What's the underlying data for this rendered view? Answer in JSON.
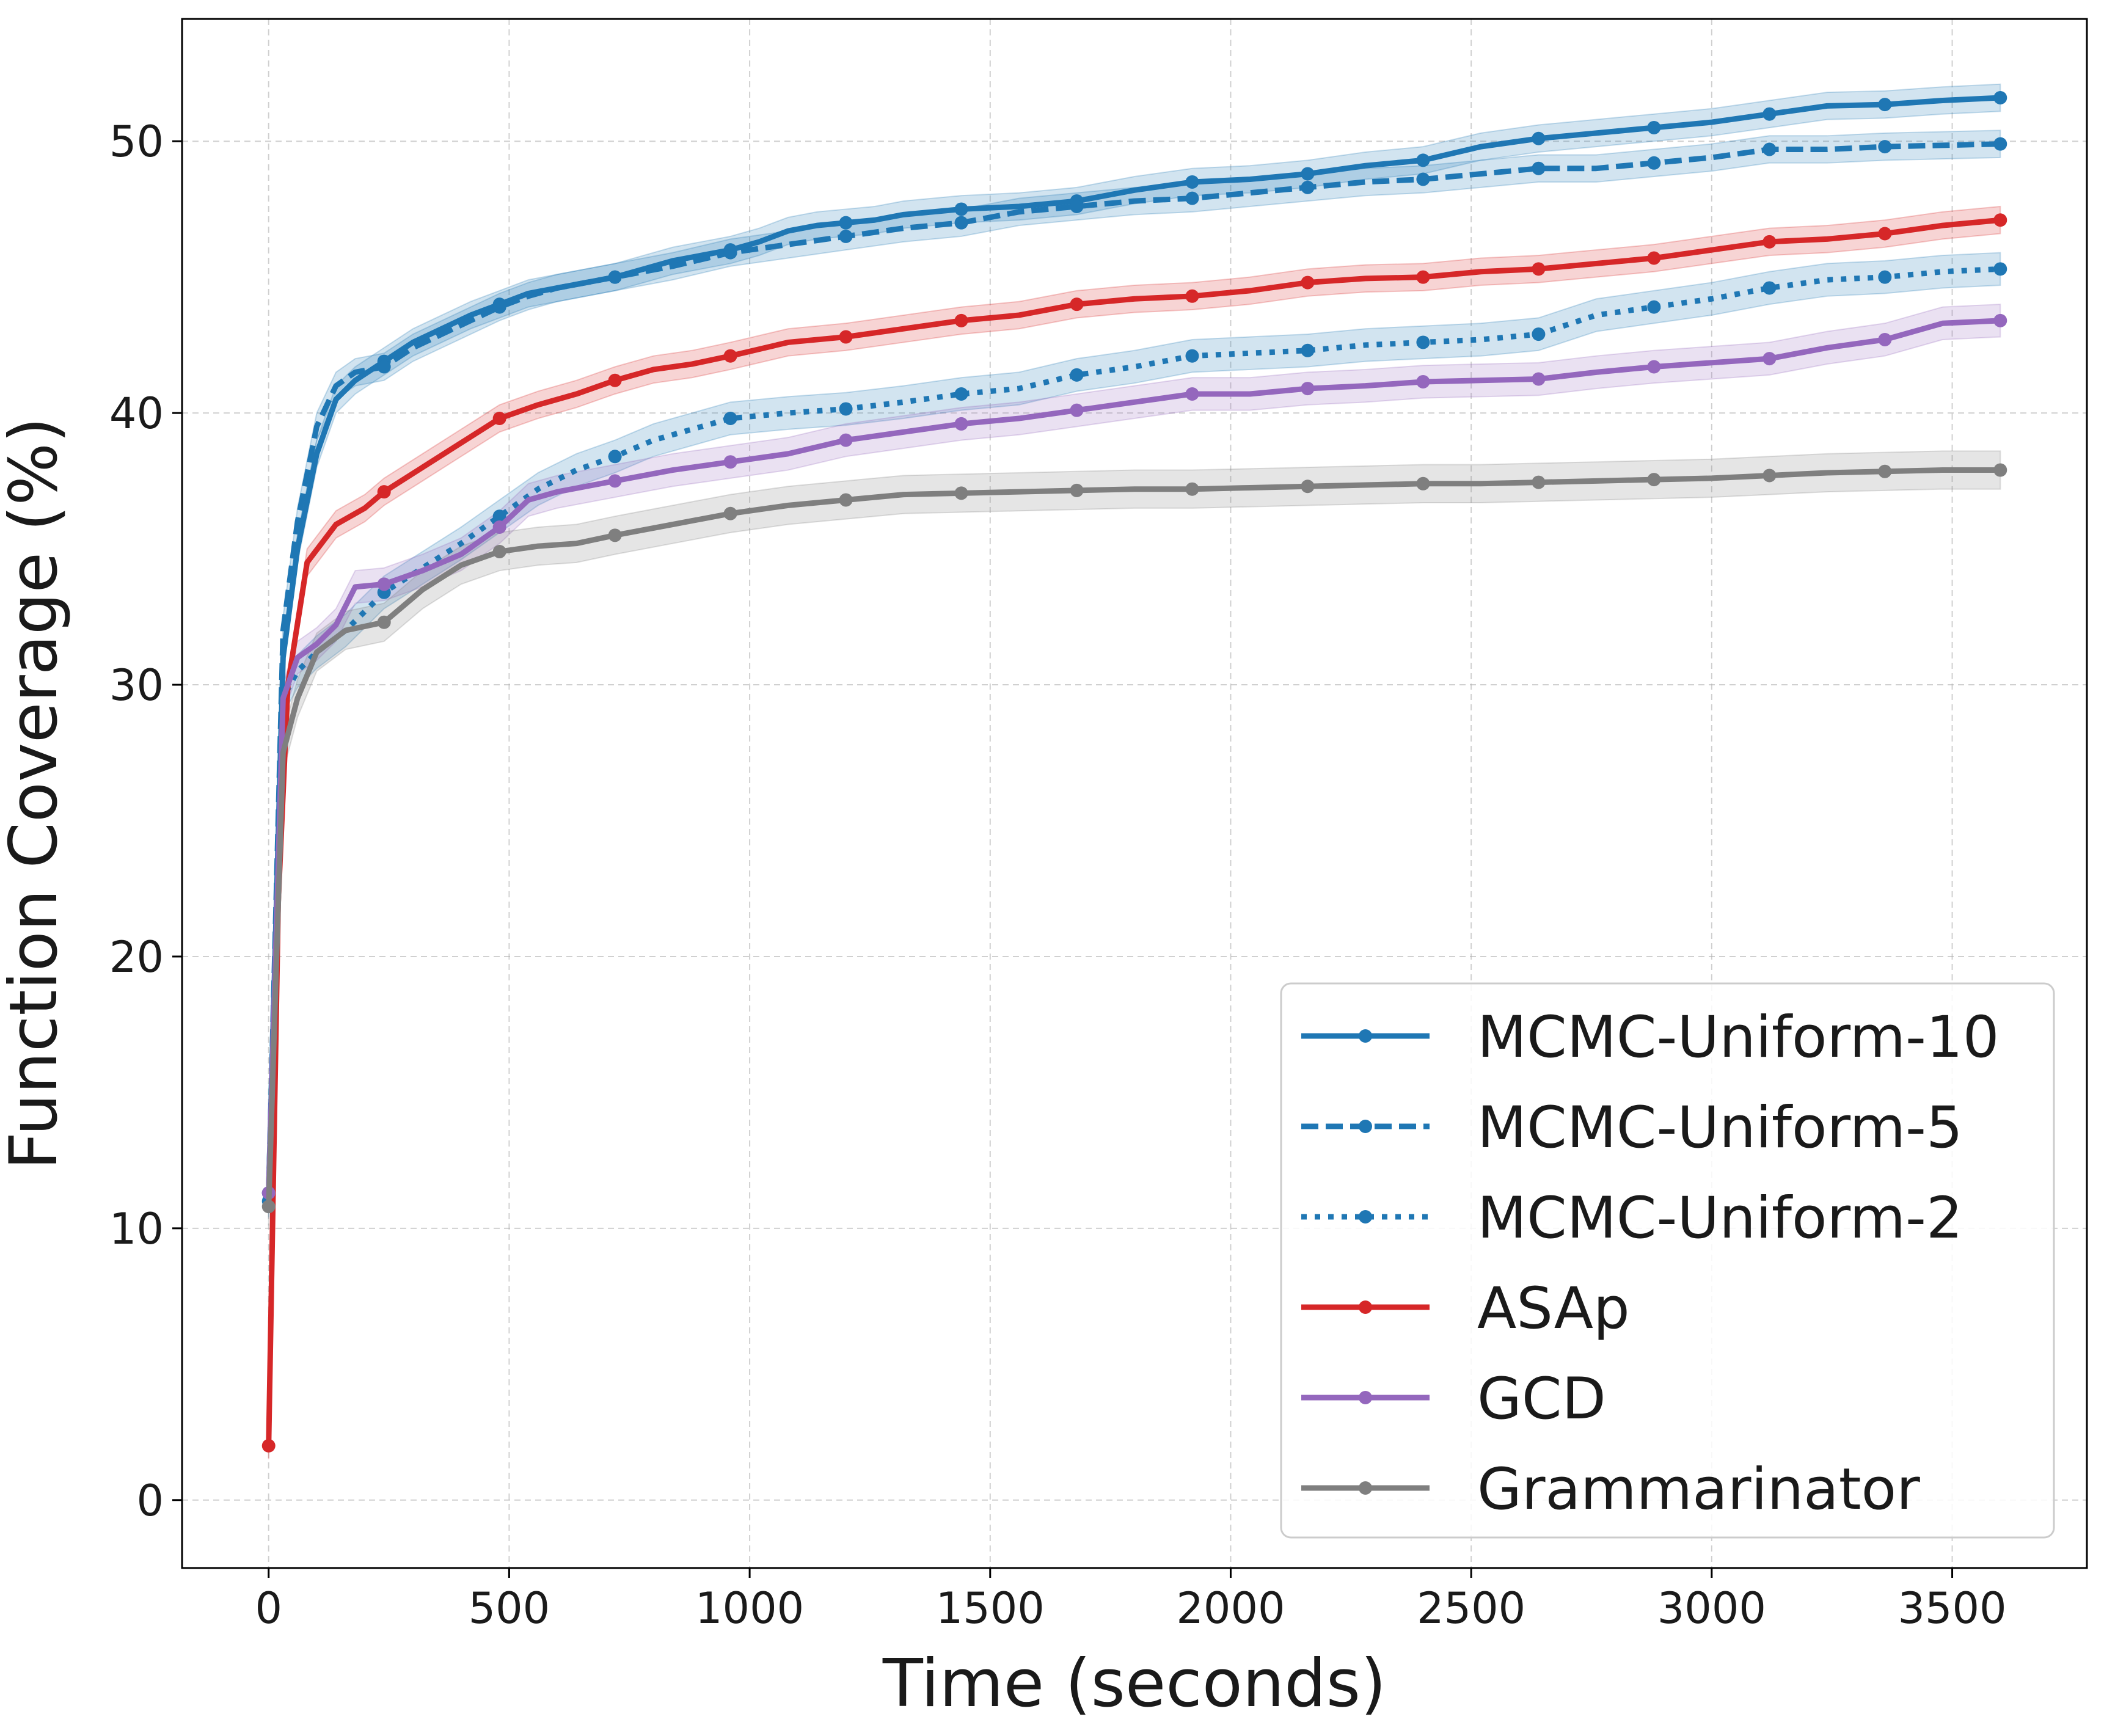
{
  "chart_data": {
    "type": "line",
    "title": "",
    "xlabel": "Time (seconds)",
    "ylabel": "Function Coverage (%)",
    "xlim": [
      -180,
      3780
    ],
    "ylim": [
      -2.5,
      54.5
    ],
    "xticks": [
      0,
      500,
      1000,
      1500,
      2000,
      2500,
      3000,
      3500
    ],
    "yticks": [
      0,
      10,
      20,
      30,
      40,
      50
    ],
    "grid": true,
    "legend": {
      "location": "lower-right"
    },
    "marker_x": [
      0,
      240,
      480,
      720,
      960,
      1200,
      1440,
      1680,
      1920,
      2160,
      2400,
      2640,
      2880,
      3120,
      3360,
      3600
    ],
    "series": [
      {
        "name": "MCMC-Uniform-10",
        "color": "#1f77b4",
        "dash": "solid",
        "band": 0.5,
        "points": [
          [
            0,
            11.3
          ],
          [
            30,
            31
          ],
          [
            60,
            35
          ],
          [
            100,
            38.5
          ],
          [
            140,
            40.5
          ],
          [
            180,
            41.2
          ],
          [
            240,
            41.9
          ],
          [
            300,
            42.6
          ],
          [
            360,
            43.1
          ],
          [
            420,
            43.6
          ],
          [
            480,
            44.0
          ],
          [
            540,
            44.4
          ],
          [
            600,
            44.6
          ],
          [
            660,
            44.8
          ],
          [
            720,
            45.0
          ],
          [
            780,
            45.3
          ],
          [
            840,
            45.6
          ],
          [
            900,
            45.8
          ],
          [
            960,
            46.0
          ],
          [
            1020,
            46.3
          ],
          [
            1080,
            46.7
          ],
          [
            1140,
            46.9
          ],
          [
            1200,
            47.0
          ],
          [
            1260,
            47.1
          ],
          [
            1320,
            47.3
          ],
          [
            1440,
            47.5
          ],
          [
            1560,
            47.6
          ],
          [
            1680,
            47.8
          ],
          [
            1800,
            48.2
          ],
          [
            1920,
            48.5
          ],
          [
            2040,
            48.6
          ],
          [
            2160,
            48.8
          ],
          [
            2280,
            49.1
          ],
          [
            2400,
            49.3
          ],
          [
            2520,
            49.8
          ],
          [
            2640,
            50.1
          ],
          [
            2760,
            50.3
          ],
          [
            2880,
            50.5
          ],
          [
            3000,
            50.7
          ],
          [
            3120,
            51.0
          ],
          [
            3240,
            51.3
          ],
          [
            3360,
            51.35
          ],
          [
            3480,
            51.5
          ],
          [
            3600,
            51.6
          ]
        ]
      },
      {
        "name": "MCMC-Uniform-5",
        "color": "#1f77b4",
        "dash": "dashed",
        "band": 0.5,
        "points": [
          [
            0,
            11.3
          ],
          [
            30,
            32
          ],
          [
            60,
            36
          ],
          [
            100,
            39.5
          ],
          [
            140,
            41
          ],
          [
            180,
            41.5
          ],
          [
            240,
            41.7
          ],
          [
            300,
            42.4
          ],
          [
            360,
            42.9
          ],
          [
            420,
            43.4
          ],
          [
            480,
            43.9
          ],
          [
            540,
            44.3
          ],
          [
            600,
            44.6
          ],
          [
            660,
            44.8
          ],
          [
            720,
            45.0
          ],
          [
            840,
            45.4
          ],
          [
            960,
            45.9
          ],
          [
            1080,
            46.2
          ],
          [
            1200,
            46.5
          ],
          [
            1320,
            46.8
          ],
          [
            1440,
            47.0
          ],
          [
            1560,
            47.4
          ],
          [
            1680,
            47.6
          ],
          [
            1800,
            47.8
          ],
          [
            1920,
            47.9
          ],
          [
            2040,
            48.1
          ],
          [
            2160,
            48.3
          ],
          [
            2280,
            48.5
          ],
          [
            2400,
            48.6
          ],
          [
            2520,
            48.8
          ],
          [
            2640,
            49.0
          ],
          [
            2760,
            49.0
          ],
          [
            2880,
            49.2
          ],
          [
            3000,
            49.4
          ],
          [
            3120,
            49.7
          ],
          [
            3240,
            49.7
          ],
          [
            3360,
            49.8
          ],
          [
            3480,
            49.85
          ],
          [
            3600,
            49.9
          ]
        ]
      },
      {
        "name": "MCMC-Uniform-2",
        "color": "#1f77b4",
        "dash": "dotted",
        "band": 0.6,
        "points": [
          [
            0,
            11.0
          ],
          [
            30,
            29.5
          ],
          [
            60,
            30.5
          ],
          [
            100,
            31.2
          ],
          [
            160,
            32.0
          ],
          [
            240,
            33.4
          ],
          [
            320,
            34.3
          ],
          [
            400,
            35.2
          ],
          [
            480,
            36.2
          ],
          [
            560,
            37.2
          ],
          [
            640,
            37.9
          ],
          [
            720,
            38.4
          ],
          [
            800,
            39.0
          ],
          [
            880,
            39.4
          ],
          [
            960,
            39.8
          ],
          [
            1080,
            40.0
          ],
          [
            1200,
            40.15
          ],
          [
            1320,
            40.4
          ],
          [
            1440,
            40.7
          ],
          [
            1560,
            40.9
          ],
          [
            1680,
            41.4
          ],
          [
            1800,
            41.7
          ],
          [
            1920,
            42.1
          ],
          [
            2040,
            42.2
          ],
          [
            2160,
            42.3
          ],
          [
            2280,
            42.5
          ],
          [
            2400,
            42.6
          ],
          [
            2520,
            42.7
          ],
          [
            2640,
            42.9
          ],
          [
            2760,
            43.6
          ],
          [
            2880,
            43.9
          ],
          [
            3000,
            44.2
          ],
          [
            3120,
            44.6
          ],
          [
            3240,
            44.9
          ],
          [
            3360,
            45.0
          ],
          [
            3480,
            45.2
          ],
          [
            3600,
            45.3
          ]
        ]
      },
      {
        "name": "ASAp",
        "color": "#d62728",
        "dash": "solid",
        "band": 0.5,
        "points": [
          [
            0,
            2.0
          ],
          [
            20,
            22
          ],
          [
            40,
            30
          ],
          [
            80,
            34.5
          ],
          [
            140,
            35.9
          ],
          [
            200,
            36.5
          ],
          [
            240,
            37.1
          ],
          [
            320,
            38.0
          ],
          [
            400,
            38.9
          ],
          [
            480,
            39.8
          ],
          [
            560,
            40.3
          ],
          [
            640,
            40.7
          ],
          [
            720,
            41.2
          ],
          [
            800,
            41.6
          ],
          [
            880,
            41.8
          ],
          [
            960,
            42.1
          ],
          [
            1080,
            42.6
          ],
          [
            1200,
            42.8
          ],
          [
            1320,
            43.1
          ],
          [
            1440,
            43.4
          ],
          [
            1560,
            43.6
          ],
          [
            1680,
            44.0
          ],
          [
            1800,
            44.2
          ],
          [
            1920,
            44.3
          ],
          [
            2040,
            44.5
          ],
          [
            2160,
            44.8
          ],
          [
            2280,
            44.95
          ],
          [
            2400,
            45.0
          ],
          [
            2520,
            45.2
          ],
          [
            2640,
            45.3
          ],
          [
            2760,
            45.5
          ],
          [
            2880,
            45.7
          ],
          [
            3000,
            46.0
          ],
          [
            3120,
            46.3
          ],
          [
            3240,
            46.4
          ],
          [
            3360,
            46.6
          ],
          [
            3480,
            46.9
          ],
          [
            3600,
            47.1
          ]
        ]
      },
      {
        "name": "GCD",
        "color": "#9467bd",
        "dash": "solid",
        "band": 0.6,
        "points": [
          [
            0,
            11.3
          ],
          [
            30,
            29.5
          ],
          [
            60,
            31.0
          ],
          [
            100,
            31.5
          ],
          [
            140,
            32.2
          ],
          [
            180,
            33.6
          ],
          [
            240,
            33.7
          ],
          [
            320,
            34.2
          ],
          [
            400,
            34.8
          ],
          [
            480,
            35.8
          ],
          [
            540,
            36.8
          ],
          [
            600,
            37.1
          ],
          [
            720,
            37.5
          ],
          [
            840,
            37.9
          ],
          [
            960,
            38.2
          ],
          [
            1080,
            38.5
          ],
          [
            1200,
            39.0
          ],
          [
            1320,
            39.3
          ],
          [
            1440,
            39.6
          ],
          [
            1560,
            39.8
          ],
          [
            1680,
            40.1
          ],
          [
            1800,
            40.4
          ],
          [
            1920,
            40.7
          ],
          [
            2040,
            40.7
          ],
          [
            2160,
            40.9
          ],
          [
            2280,
            41.0
          ],
          [
            2400,
            41.15
          ],
          [
            2520,
            41.2
          ],
          [
            2640,
            41.25
          ],
          [
            2760,
            41.5
          ],
          [
            2880,
            41.7
          ],
          [
            3000,
            41.85
          ],
          [
            3120,
            42.0
          ],
          [
            3240,
            42.4
          ],
          [
            3360,
            42.7
          ],
          [
            3480,
            43.3
          ],
          [
            3600,
            43.4
          ]
        ]
      },
      {
        "name": "Grammarinator",
        "color": "#7f7f7f",
        "dash": "solid",
        "band": 0.7,
        "points": [
          [
            0,
            10.8
          ],
          [
            30,
            27.5
          ],
          [
            60,
            29.5
          ],
          [
            100,
            31.2
          ],
          [
            160,
            32.0
          ],
          [
            240,
            32.3
          ],
          [
            320,
            33.5
          ],
          [
            400,
            34.4
          ],
          [
            480,
            34.9
          ],
          [
            560,
            35.1
          ],
          [
            640,
            35.2
          ],
          [
            720,
            35.5
          ],
          [
            840,
            35.9
          ],
          [
            960,
            36.3
          ],
          [
            1080,
            36.6
          ],
          [
            1200,
            36.8
          ],
          [
            1320,
            37.0
          ],
          [
            1440,
            37.05
          ],
          [
            1560,
            37.1
          ],
          [
            1680,
            37.15
          ],
          [
            1800,
            37.2
          ],
          [
            1920,
            37.2
          ],
          [
            2040,
            37.25
          ],
          [
            2160,
            37.3
          ],
          [
            2280,
            37.35
          ],
          [
            2400,
            37.4
          ],
          [
            2520,
            37.4
          ],
          [
            2640,
            37.45
          ],
          [
            2760,
            37.5
          ],
          [
            2880,
            37.55
          ],
          [
            3000,
            37.6
          ],
          [
            3120,
            37.7
          ],
          [
            3240,
            37.8
          ],
          [
            3360,
            37.85
          ],
          [
            3480,
            37.9
          ],
          [
            3600,
            37.9
          ]
        ]
      }
    ]
  }
}
